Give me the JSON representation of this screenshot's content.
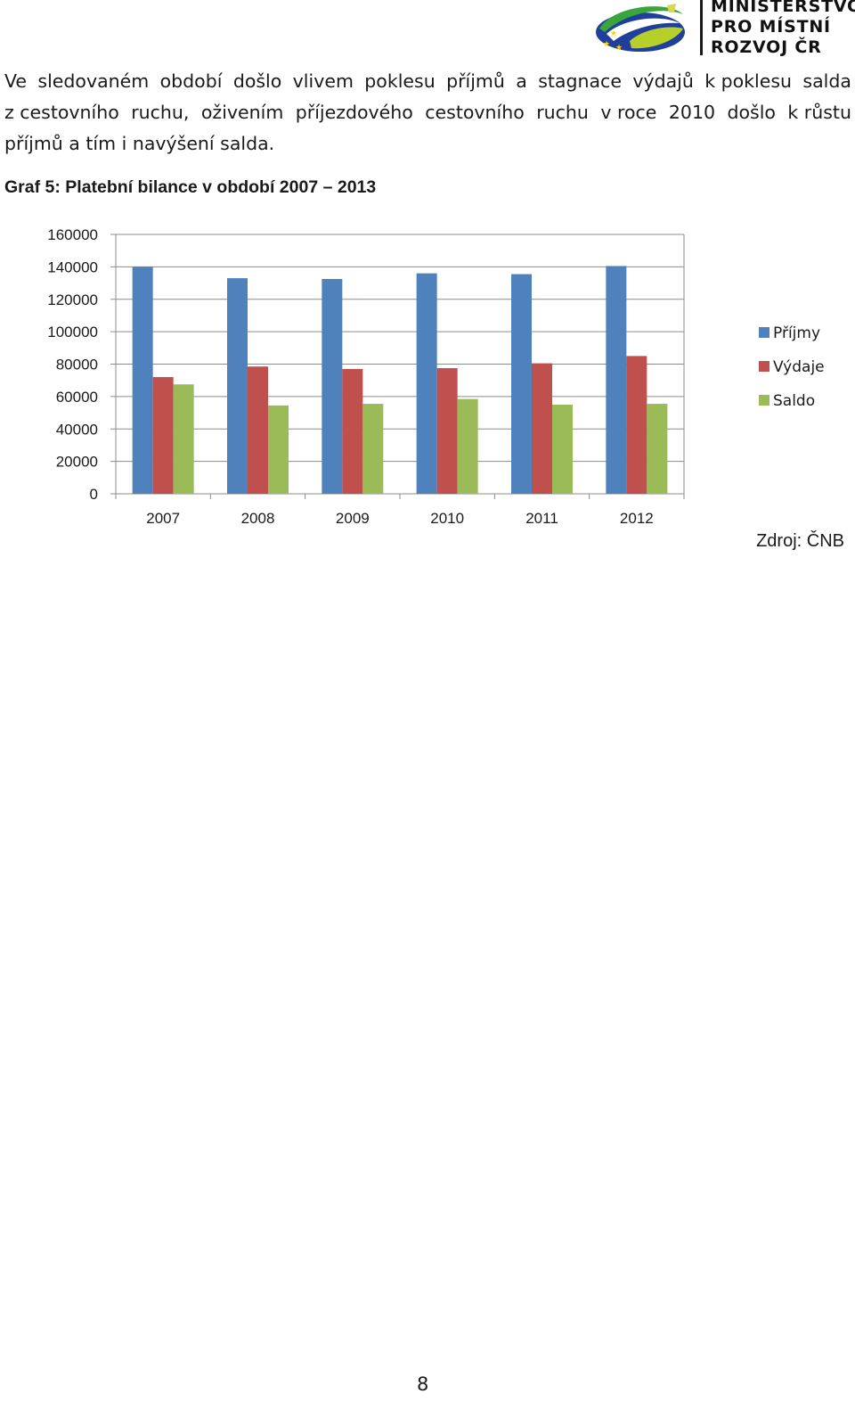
{
  "header": {
    "logo_lines": [
      "MINISTERSTVO",
      "PRO MÍSTNÍ",
      "ROZVOJ ČR"
    ]
  },
  "body": {
    "lines": [
      [
        "Ve",
        "sledovaném",
        "období",
        "došlo",
        "vlivem",
        "poklesu",
        "příjmů",
        "a",
        "stagnace",
        "výdajů",
        "k poklesu",
        "salda"
      ],
      [
        "z cestovního",
        "ruchu,",
        "oživením",
        "příjezdového",
        "cestovního",
        "ruchu",
        "v roce",
        "2010",
        "došlo",
        "k růstu"
      ],
      "příjmů a tím i navýšení salda."
    ]
  },
  "figure": {
    "caption": "Graf 5: Platební bilance v období 2007 – 2013",
    "source": "Zdroj: ČNB"
  },
  "chart_data": {
    "type": "bar",
    "title": "",
    "xlabel": "",
    "ylabel": "",
    "categories": [
      "2007",
      "2008",
      "2009",
      "2010",
      "2011",
      "2012"
    ],
    "series": [
      {
        "name": "Příjmy",
        "color": "#4F81BD",
        "values": [
          140000,
          133000,
          132500,
          136000,
          135500,
          140500
        ]
      },
      {
        "name": "Výdaje",
        "color": "#C0504D",
        "values": [
          72000,
          78500,
          77000,
          77500,
          80500,
          85000
        ]
      },
      {
        "name": "Saldo",
        "color": "#9BBB59",
        "values": [
          67500,
          54500,
          55500,
          58500,
          55000,
          55500
        ]
      }
    ],
    "ylim": [
      0,
      160000
    ],
    "yticks": [
      0,
      20000,
      40000,
      60000,
      80000,
      100000,
      120000,
      140000,
      160000
    ],
    "grid": true,
    "legend_position": "right"
  },
  "footer": {
    "page_number": "8"
  }
}
